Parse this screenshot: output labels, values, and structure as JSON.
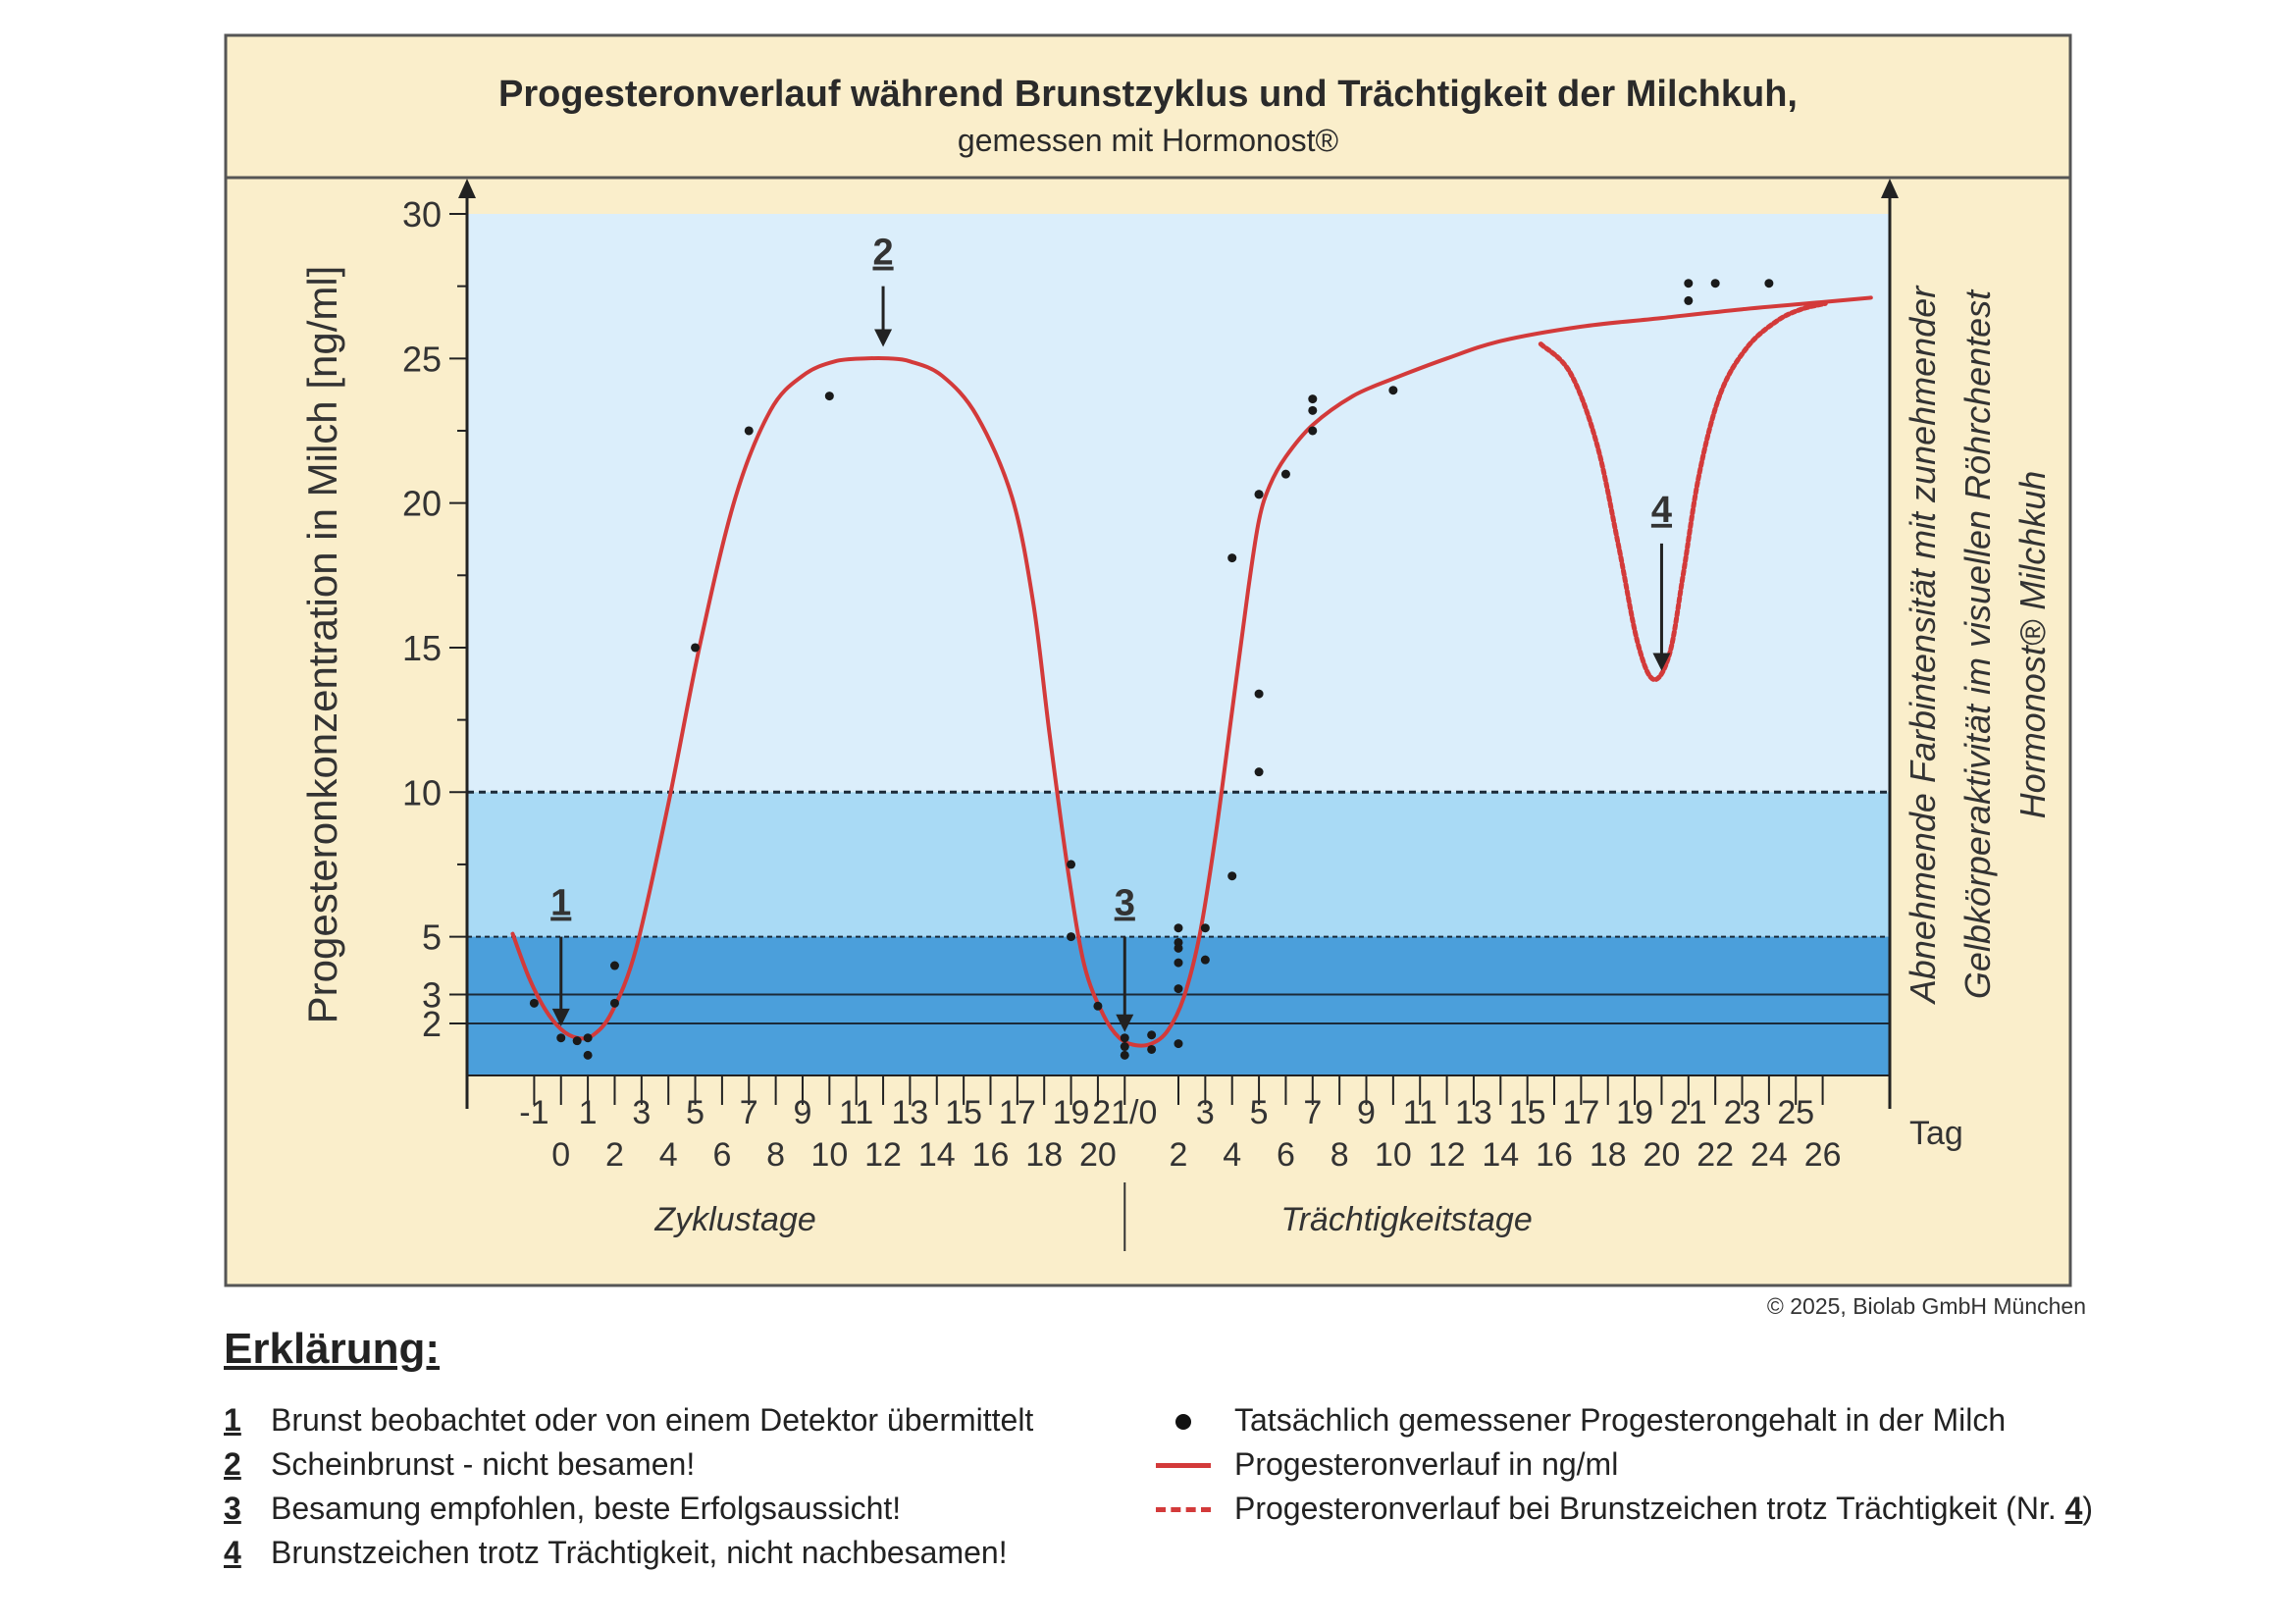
{
  "title": "Progesteronverlauf während Brunstzyklus und Trächtigkeit der Milchkuh,",
  "subtitle": "gemessen mit Hormonost®",
  "colors": {
    "header_bg": "#faeecb",
    "band_top": "#dbeefb",
    "band_mid": "#a9daf5",
    "band_low": "#4b9fdb",
    "curve": "#d33a3a",
    "frame": "#555555"
  },
  "chart_data": {
    "type": "line",
    "ylabel": "Progesteronkonzentration in Milch [ng/ml]",
    "right_label_lines": [
      "Abnehmende Farbintensität mit zunehmender",
      "Gelbkörperaktivität im visuellen Röhrchentest",
      "Hormonost® Milchkuh"
    ],
    "xlabel_unit": "Tag",
    "ylim": [
      0.2,
      30
    ],
    "xlim": [
      -3.5,
      49.5
    ],
    "yticks": [
      2,
      3,
      5,
      10,
      15,
      20,
      25,
      30
    ],
    "x_tick_labels_top": [
      {
        "x": -1,
        "label": "-1"
      },
      {
        "x": 1,
        "label": "1"
      },
      {
        "x": 3,
        "label": "3"
      },
      {
        "x": 5,
        "label": "5"
      },
      {
        "x": 7,
        "label": "7"
      },
      {
        "x": 9,
        "label": "9"
      },
      {
        "x": 11,
        "label": "11"
      },
      {
        "x": 13,
        "label": "13"
      },
      {
        "x": 15,
        "label": "15"
      },
      {
        "x": 17,
        "label": "17"
      },
      {
        "x": 19,
        "label": "19"
      },
      {
        "x": 21,
        "label": "21/0"
      },
      {
        "x": 24,
        "label": "3"
      },
      {
        "x": 26,
        "label": "5"
      },
      {
        "x": 28,
        "label": "7"
      },
      {
        "x": 30,
        "label": "9"
      },
      {
        "x": 32,
        "label": "11"
      },
      {
        "x": 34,
        "label": "13"
      },
      {
        "x": 36,
        "label": "15"
      },
      {
        "x": 38,
        "label": "17"
      },
      {
        "x": 40,
        "label": "19"
      },
      {
        "x": 42,
        "label": "21"
      },
      {
        "x": 44,
        "label": "23"
      },
      {
        "x": 46,
        "label": "25"
      }
    ],
    "x_tick_labels_bottom": [
      {
        "x": 0,
        "label": "0"
      },
      {
        "x": 2,
        "label": "2"
      },
      {
        "x": 4,
        "label": "4"
      },
      {
        "x": 6,
        "label": "6"
      },
      {
        "x": 8,
        "label": "8"
      },
      {
        "x": 10,
        "label": "10"
      },
      {
        "x": 12,
        "label": "12"
      },
      {
        "x": 14,
        "label": "14"
      },
      {
        "x": 16,
        "label": "16"
      },
      {
        "x": 18,
        "label": "18"
      },
      {
        "x": 20,
        "label": "20"
      },
      {
        "x": 23,
        "label": "2"
      },
      {
        "x": 25,
        "label": "4"
      },
      {
        "x": 27,
        "label": "6"
      },
      {
        "x": 29,
        "label": "8"
      },
      {
        "x": 31,
        "label": "10"
      },
      {
        "x": 33,
        "label": "12"
      },
      {
        "x": 35,
        "label": "14"
      },
      {
        "x": 37,
        "label": "16"
      },
      {
        "x": 39,
        "label": "18"
      },
      {
        "x": 41,
        "label": "20"
      },
      {
        "x": 43,
        "label": "22"
      },
      {
        "x": 45,
        "label": "24"
      },
      {
        "x": 47,
        "label": "26"
      }
    ],
    "sections": [
      {
        "label": "Zyklustage",
        "x_center": 6.5
      },
      {
        "label": "Trächtigkeitstage",
        "x_center": 31.5
      }
    ],
    "section_divider_x": 21,
    "threshold_lines": [
      2,
      3,
      5,
      10
    ],
    "bands": [
      {
        "from": 10,
        "to": 30
      },
      {
        "from": 5,
        "to": 10
      },
      {
        "from": 0.2,
        "to": 5
      }
    ],
    "series": [
      {
        "name": "Progesteronverlauf in ng/ml",
        "style": "solid",
        "x": [
          -1.8,
          -1.2,
          -0.6,
          0,
          0.6,
          1.2,
          1.9,
          2.8,
          4,
          5.2,
          6.5,
          7.8,
          9,
          10.2,
          11.4,
          12.2,
          13,
          14.2,
          15.5,
          16.8,
          17.6,
          18.2,
          18.9,
          19.5,
          20.2,
          20.8,
          21.4,
          22,
          22.6,
          23.2,
          23.8,
          24.4,
          25,
          25.6,
          26,
          26.4,
          27,
          28,
          29.5,
          31,
          33,
          35,
          38,
          41,
          44,
          47,
          48.8
        ],
        "y": [
          5.1,
          3.6,
          2.5,
          1.8,
          1.5,
          1.6,
          2.4,
          4.6,
          9.6,
          15.2,
          20.2,
          23.2,
          24.4,
          24.9,
          25.0,
          25.0,
          24.9,
          24.4,
          23.0,
          20.2,
          16.5,
          12.0,
          7.2,
          4.0,
          2.3,
          1.5,
          1.25,
          1.3,
          1.75,
          2.9,
          5.1,
          8.6,
          12.8,
          17.0,
          19.4,
          20.6,
          21.6,
          22.7,
          23.7,
          24.3,
          25.0,
          25.6,
          26.1,
          26.4,
          26.7,
          26.95,
          27.1
        ]
      },
      {
        "name": "Progesteronverlauf bei Brunstzeichen trotz Trächtigkeit (Nr. 4)",
        "style": "dashed",
        "x": [
          36.5,
          37.6,
          38.6,
          39.4,
          40.1,
          40.7,
          41.3,
          41.8,
          42.4,
          43.2,
          44.2,
          45.3,
          46.2,
          47.1
        ],
        "y": [
          25.5,
          24.5,
          22.0,
          18.5,
          15.2,
          13.9,
          14.8,
          17.5,
          21.0,
          23.8,
          25.4,
          26.3,
          26.7,
          26.9
        ]
      }
    ],
    "measured_points": {
      "name": "Tatsächlich gemessener Progesterongehalt in der Milch",
      "x": [
        -1,
        0,
        0.6,
        1,
        1.0,
        2,
        2,
        5,
        7,
        10,
        19,
        19,
        20,
        21,
        21,
        21,
        22,
        22,
        23,
        23,
        23,
        23,
        23,
        23,
        24,
        24,
        25,
        25,
        26,
        26,
        26,
        26,
        27,
        28,
        28,
        28,
        31,
        42,
        42,
        43,
        45
      ],
      "y": [
        2.7,
        1.5,
        1.4,
        0.9,
        1.5,
        2.7,
        4.0,
        15.0,
        22.5,
        23.7,
        7.5,
        5.0,
        2.6,
        1.5,
        1.2,
        0.9,
        1.6,
        1.1,
        1.3,
        3.2,
        4.1,
        4.8,
        5.3,
        4.6,
        4.2,
        5.3,
        7.1,
        18.1,
        20.3,
        13.4,
        10.7,
        20.3,
        21.0,
        22.5,
        23.2,
        23.6,
        23.9,
        27.6,
        27.0,
        27.6,
        27.6
      ]
    },
    "markers": [
      {
        "label": "1",
        "x": 0,
        "y_from": 5.0,
        "y_to": 1.9
      },
      {
        "label": "2",
        "x": 12,
        "y_from": 27.5,
        "y_to": 25.4
      },
      {
        "label": "3",
        "x": 21,
        "y_from": 5.0,
        "y_to": 1.7
      },
      {
        "label": "4",
        "x": 41,
        "y_from": 18.6,
        "y_to": 14.2
      }
    ]
  },
  "copyright": "© 2025, Biolab GmbH München",
  "legend_title": "Erklärung:",
  "explanations": [
    {
      "num": "1",
      "text": "Brunst beobachtet oder von einem Detektor übermittelt"
    },
    {
      "num": "2",
      "text": "Scheinbrunst - nicht besamen!"
    },
    {
      "num": "3",
      "text": "Besamung empfohlen, beste Erfolgsaussicht!"
    },
    {
      "num": "4",
      "text": "Brunstzeichen trotz Trächtigkeit, nicht nachbesamen!"
    }
  ],
  "key": {
    "dot": "Tatsächlich gemessener Progesterongehalt in der Milch",
    "line": "Progesteronverlauf in ng/ml",
    "dashed_prefix": "Progesteronverlauf bei Brunstzeichen trotz Trächtigkeit (Nr. ",
    "dashed_num": "4",
    "dashed_suffix": ")"
  }
}
